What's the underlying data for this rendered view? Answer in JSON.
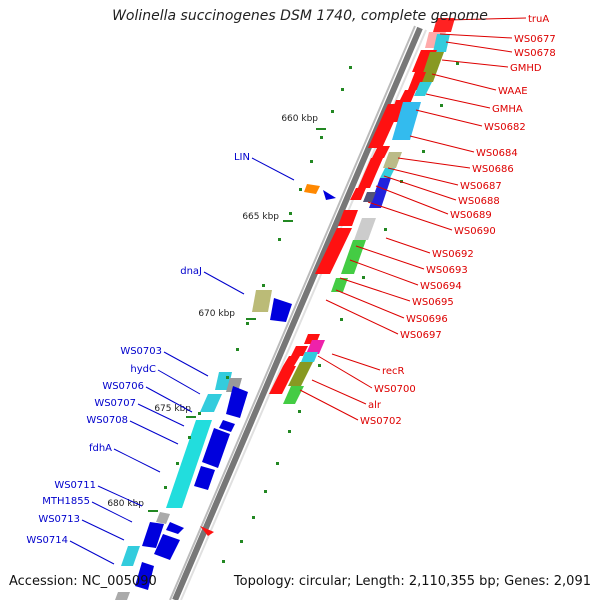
{
  "title": "Wolinella succinogenes DSM 1740, complete genome",
  "accession_label": "Accession: NC_005090",
  "topology_label": "Topology: circular; Length: 2,110,355 bp; Genes: 2,091",
  "colors": {
    "forward_label": "#dd0000",
    "reverse_label": "#0000cc",
    "tick": "#228822",
    "backbone": "#888888"
  },
  "kbp_ticks": [
    "660 kbp",
    "665 kbp",
    "670 kbp",
    "675 kbp",
    "680 kbp"
  ],
  "right_labels": [
    "truA",
    "WS0677",
    "WS0678",
    "GMHD",
    "WAAE",
    "GMHA",
    "WS0682",
    "WS0684",
    "WS0686",
    "WS0687",
    "WS0688",
    "WS0689",
    "WS0690",
    "WS0692",
    "WS0693",
    "WS0694",
    "WS0695",
    "WS0696",
    "WS0697",
    "recR",
    "WS0700",
    "alr",
    "WS0702"
  ],
  "left_labels": [
    "LIN",
    "dnaJ",
    "WS0703",
    "hydC",
    "WS0706",
    "WS0707",
    "WS0708",
    "fdhA",
    "WS0711",
    "MTH1855",
    "WS0713",
    "WS0714"
  ]
}
